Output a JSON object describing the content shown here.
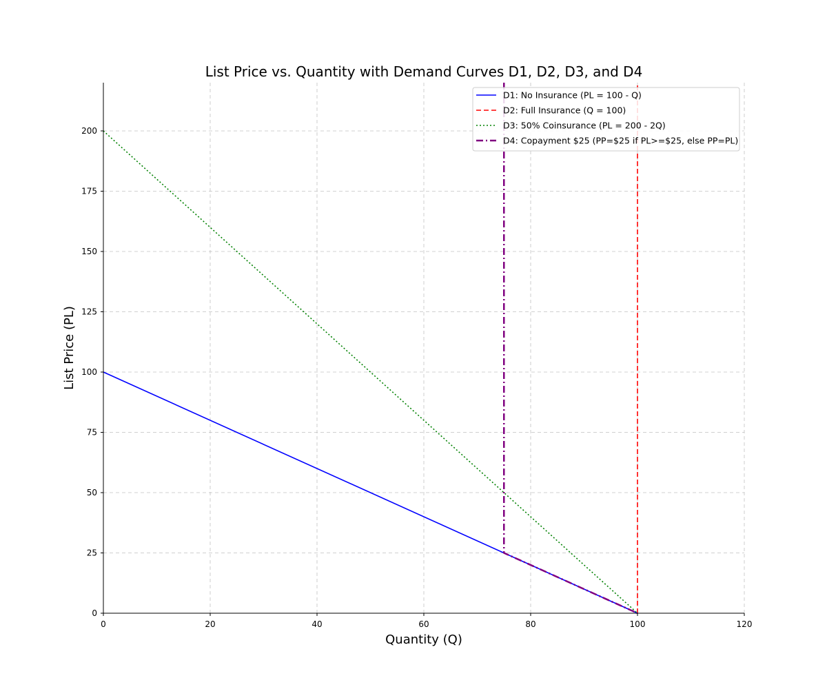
{
  "chart_data": {
    "type": "line",
    "title": "List Price vs. Quantity with Demand Curves D1, D2, D3, and D4",
    "xlabel": "Quantity (Q)",
    "ylabel": "List Price (PL)",
    "xlim": [
      0,
      120
    ],
    "ylim": [
      0,
      220
    ],
    "xticks": [
      0,
      20,
      40,
      60,
      80,
      100,
      120
    ],
    "yticks": [
      0,
      25,
      50,
      75,
      100,
      125,
      150,
      175,
      200
    ],
    "grid": true,
    "legend_position": "top-right",
    "series": [
      {
        "name": "D1: No Insurance (PL = 100 - Q)",
        "color": "#0000ff",
        "line_style": "solid",
        "points": [
          [
            0,
            100
          ],
          [
            100,
            0
          ]
        ]
      },
      {
        "name": "D2: Full Insurance (Q = 100)",
        "color": "#ff0000",
        "line_style": "dashed",
        "points": [
          [
            100,
            0
          ],
          [
            100,
            220
          ]
        ]
      },
      {
        "name": "D3: 50% Coinsurance (PL = 200 - 2Q)",
        "color": "#008000",
        "line_style": "dotted",
        "points": [
          [
            0,
            200
          ],
          [
            100,
            0
          ]
        ]
      },
      {
        "name": "D4: Copayment $25 (PP=$25 if PL>=$25, else PP=PL)",
        "color": "#800080",
        "line_style": "dashdot",
        "points": [
          [
            75,
            220
          ],
          [
            75,
            25
          ],
          [
            100,
            0
          ]
        ]
      }
    ]
  }
}
